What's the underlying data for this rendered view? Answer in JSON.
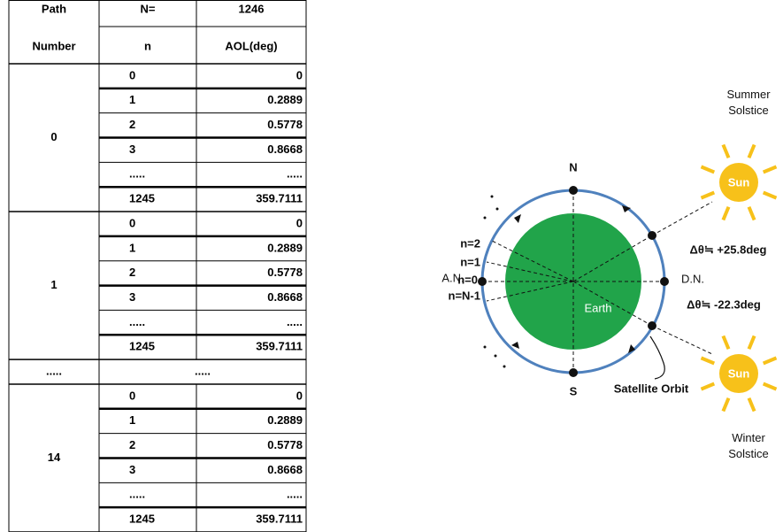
{
  "table": {
    "header": [
      [
        "Path",
        "N=",
        "1246"
      ],
      [
        "Number",
        "n",
        "AOL(deg)"
      ]
    ],
    "groups": [
      {
        "path": "0",
        "rows": [
          [
            "0",
            "0"
          ],
          [
            "1",
            "0.2889"
          ],
          [
            "2",
            "0.5778"
          ],
          [
            "3",
            "0.8668"
          ],
          [
            ".....",
            "....."
          ],
          [
            "1245",
            "359.7111"
          ]
        ]
      },
      {
        "path": "1",
        "rows": [
          [
            "0",
            "0"
          ],
          [
            "1",
            "0.2889"
          ],
          [
            "2",
            "0.5778"
          ],
          [
            "3",
            "0.8668"
          ],
          [
            ".....",
            "....."
          ],
          [
            "1245",
            "359.7111"
          ]
        ]
      },
      {
        "path": ".....",
        "rows": [
          [
            "....."
          ]
        ]
      },
      {
        "path": "14",
        "rows": [
          [
            "0",
            "0"
          ],
          [
            "1",
            "0.2889"
          ],
          [
            "2",
            "0.5778"
          ],
          [
            "3",
            "0.8668"
          ],
          [
            ".....",
            "....."
          ],
          [
            "1245",
            "359.7111"
          ]
        ]
      }
    ]
  },
  "diagram": {
    "north": "N",
    "south": "S",
    "ascending_node": "A.N.",
    "descending_node": "D.N.",
    "earth": "Earth",
    "orbit": "Satellite Orbit",
    "n_labels": [
      "n=2",
      "n=1",
      "n=0",
      "n=N-1"
    ],
    "summer": "Summer\nSolstice",
    "winter": "Winter\nSolstice",
    "sun_summer": "Sun",
    "sun_winter": "Sun",
    "delta_summer": "Δθ≒ +25.8deg",
    "delta_winter": "Δθ≒ -22.3deg"
  }
}
